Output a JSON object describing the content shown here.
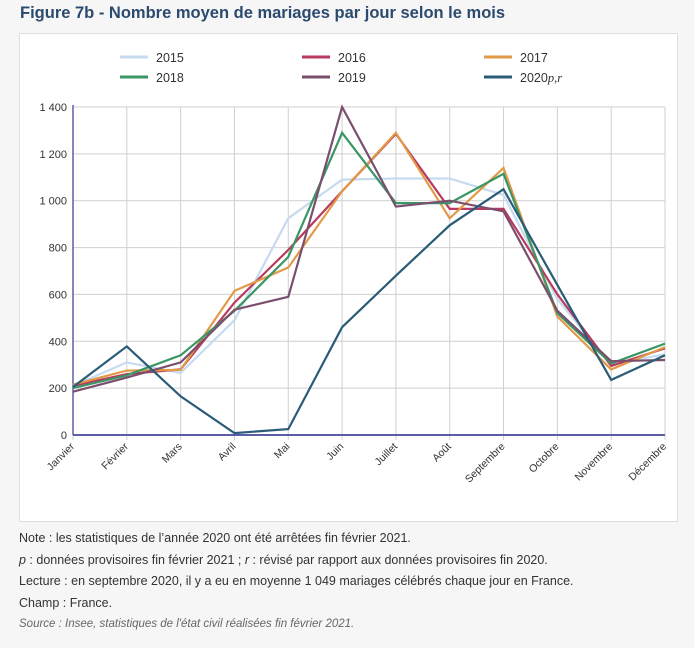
{
  "title": "Figure 7b - Nombre moyen de mariages par jour selon le mois",
  "notes": {
    "note": "Note : les statistiques de l’année 2020 ont été arrêtées fin février 2021.",
    "p_label": "p",
    "p_text": " : données provisoires fin février 2021 ; ",
    "r_label": "r",
    "r_text": " : révisé par rapport aux données provisoires fin 2020.",
    "lecture": "Lecture : en septembre 2020, il y a eu en moyenne 1 049 mariages célébrés chaque jour en France.",
    "champ": "Champ : France.",
    "source": "Source : Insee, statistiques de l'état civil réalisées fin février 2021."
  },
  "chart_data": {
    "type": "line",
    "title": "Figure 7b - Nombre moyen de mariages par jour selon le mois",
    "xlabel": "",
    "ylabel": "",
    "categories": [
      "Janvier",
      "Février",
      "Mars",
      "Avril",
      "Mai",
      "Juin",
      "Juillet",
      "Août",
      "Septembre",
      "Octobre",
      "Novembre",
      "Décembre"
    ],
    "ylim": [
      0,
      1400
    ],
    "yticks": [
      0,
      200,
      400,
      600,
      800,
      1000,
      1200,
      1400
    ],
    "ytick_labels": [
      "0",
      "200",
      "400",
      "600",
      "800",
      "1 000",
      "1 200",
      "1 400"
    ],
    "grid": true,
    "legend_position": "top",
    "series": [
      {
        "name": "2015",
        "color": "#c6dbf0",
        "values": [
          210,
          310,
          265,
          490,
          925,
          1090,
          1095,
          1095,
          1025,
          580,
          300,
          345
        ]
      },
      {
        "name": "2016",
        "color": "#b93a5e",
        "values": [
          210,
          260,
          280,
          565,
          790,
          1040,
          1285,
          965,
          965,
          600,
          295,
          370
        ]
      },
      {
        "name": "2017",
        "color": "#e09a48",
        "values": [
          215,
          275,
          278,
          615,
          715,
          1040,
          1290,
          925,
          1140,
          505,
          280,
          375
        ]
      },
      {
        "name": "2018",
        "color": "#3a9663",
        "values": [
          200,
          255,
          340,
          530,
          760,
          1290,
          990,
          990,
          1115,
          520,
          305,
          390
        ]
      },
      {
        "name": "2019",
        "color": "#7a4f6e",
        "values": [
          185,
          245,
          310,
          535,
          590,
          1400,
          975,
          1000,
          955,
          530,
          315,
          320
        ]
      },
      {
        "name": "2020p,r",
        "color": "#2a5b78",
        "values": [
          205,
          378,
          165,
          8,
          25,
          460,
          680,
          895,
          1049,
          640,
          235,
          340
        ]
      }
    ]
  }
}
